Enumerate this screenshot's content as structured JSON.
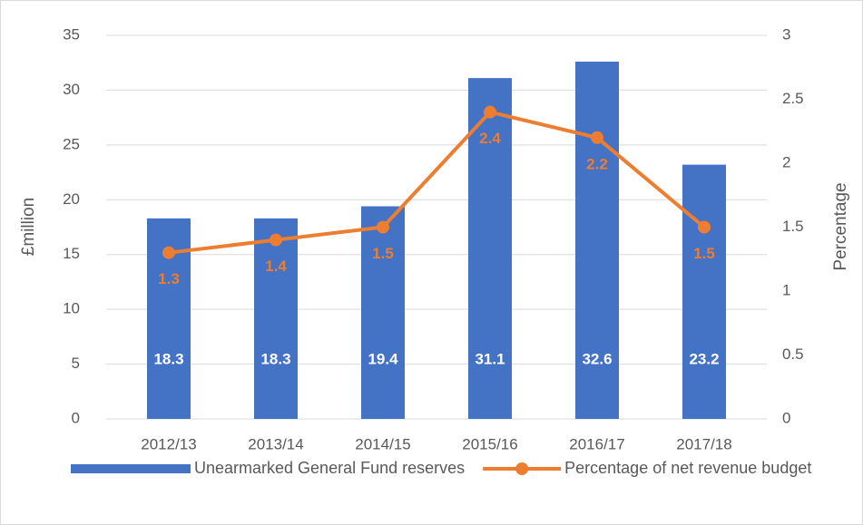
{
  "chart_data": {
    "type": "bar",
    "categories": [
      "2012/13",
      "2013/14",
      "2014/15",
      "2015/16",
      "2016/17",
      "2017/18"
    ],
    "series": [
      {
        "name": "Unearmarked General Fund reserves",
        "color": "#4472c4",
        "type": "bar",
        "values": [
          18.3,
          18.3,
          19.4,
          31.1,
          32.6,
          23.2
        ]
      },
      {
        "name": "Percentage of net revenue budget",
        "color": "#ed7d31",
        "type": "line",
        "axis": "y2",
        "values": [
          1.3,
          1.4,
          1.5,
          2.4,
          2.2,
          1.5
        ]
      }
    ],
    "y_label": "£million",
    "y2_label": "Percentage",
    "ylim": [
      0,
      35
    ],
    "yticks": [
      0,
      5,
      10,
      15,
      20,
      25,
      30,
      35
    ],
    "y2lim": [
      0,
      3
    ],
    "y2ticks": [
      0,
      0.5,
      1,
      1.5,
      2,
      2.5,
      3
    ],
    "grid": true,
    "data_labels": true,
    "legend": "bottom"
  }
}
